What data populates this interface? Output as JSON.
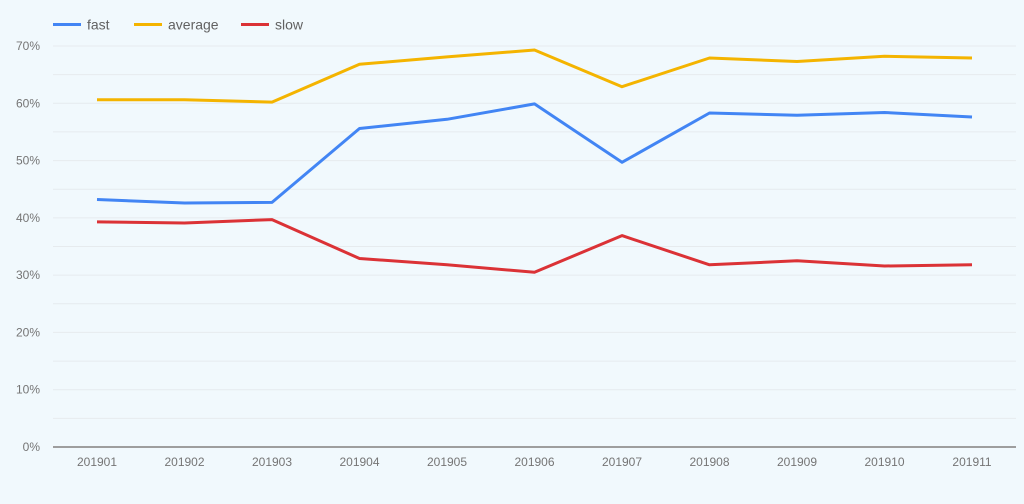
{
  "chart_data": {
    "type": "line",
    "title": "",
    "xlabel": "",
    "ylabel": "",
    "categories": [
      "201901",
      "201902",
      "201903",
      "201904",
      "201905",
      "201906",
      "201907",
      "201908",
      "201909",
      "201910",
      "201911"
    ],
    "series": [
      {
        "name": "fast",
        "color": "#4285f4",
        "values": [
          43.2,
          42.6,
          42.7,
          55.6,
          57.2,
          59.9,
          49.7,
          58.3,
          57.9,
          58.4,
          57.6
        ]
      },
      {
        "name": "average",
        "color": "#f4b400",
        "values": [
          60.6,
          60.6,
          60.2,
          66.8,
          68.1,
          69.3,
          62.9,
          67.9,
          67.3,
          68.2,
          67.9
        ]
      },
      {
        "name": "slow",
        "color": "#db3236",
        "values": [
          39.3,
          39.1,
          39.7,
          32.9,
          31.8,
          30.5,
          36.9,
          31.8,
          32.5,
          31.6,
          31.8
        ]
      }
    ],
    "ylim": [
      0,
      70
    ],
    "yticks": [
      0,
      10,
      20,
      30,
      40,
      50,
      60,
      70
    ],
    "ytick_labels": [
      "0%",
      "10%",
      "20%",
      "30%",
      "40%",
      "50%",
      "60%",
      "70%"
    ],
    "grid": true,
    "minor_grid": true,
    "legend_position": "top-left"
  }
}
